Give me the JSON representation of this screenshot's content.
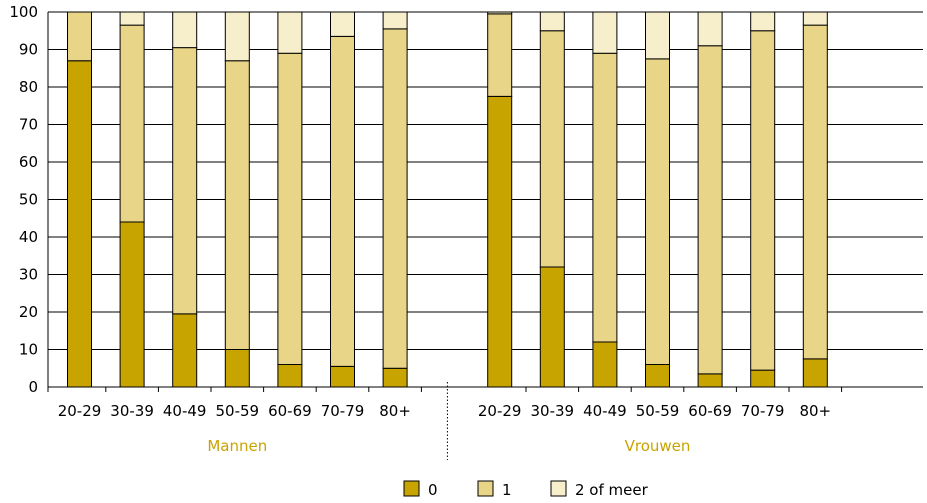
{
  "chart_data": {
    "type": "bar",
    "stacked": true,
    "title": "",
    "xlabel": "",
    "ylabel": "",
    "ylim": [
      0,
      100
    ],
    "yticks": [
      0,
      10,
      20,
      30,
      40,
      50,
      60,
      70,
      80,
      90,
      100
    ],
    "grid": true,
    "legend_position": "bottom",
    "groups": [
      {
        "label": "Mannen",
        "categories": [
          "20-29",
          "30-39",
          "40-49",
          "50-59",
          "60-69",
          "70-79",
          "80+"
        ]
      },
      {
        "label": "Vrouwen",
        "categories": [
          "20-29",
          "30-39",
          "40-49",
          "50-59",
          "60-69",
          "70-79",
          "80+"
        ]
      }
    ],
    "series": [
      {
        "name": "0",
        "color": "#c8a400",
        "values": [
          87,
          44,
          19.5,
          10,
          6,
          5.5,
          5,
          77.5,
          32,
          12,
          6,
          3.5,
          4.5,
          7.5
        ]
      },
      {
        "name": "1",
        "color": "#e8d588",
        "values": [
          13,
          52.5,
          71,
          77,
          83,
          88,
          90.5,
          22,
          63,
          77,
          81.5,
          87.5,
          90.5,
          89
        ]
      },
      {
        "name": "2 of meer",
        "color": "#f7efcc",
        "values": [
          0,
          3.5,
          9.5,
          13,
          11,
          6.5,
          4.5,
          0.5,
          5,
          11,
          12.5,
          9,
          5,
          3.5
        ]
      }
    ],
    "group_label_color": "#c8a400"
  }
}
